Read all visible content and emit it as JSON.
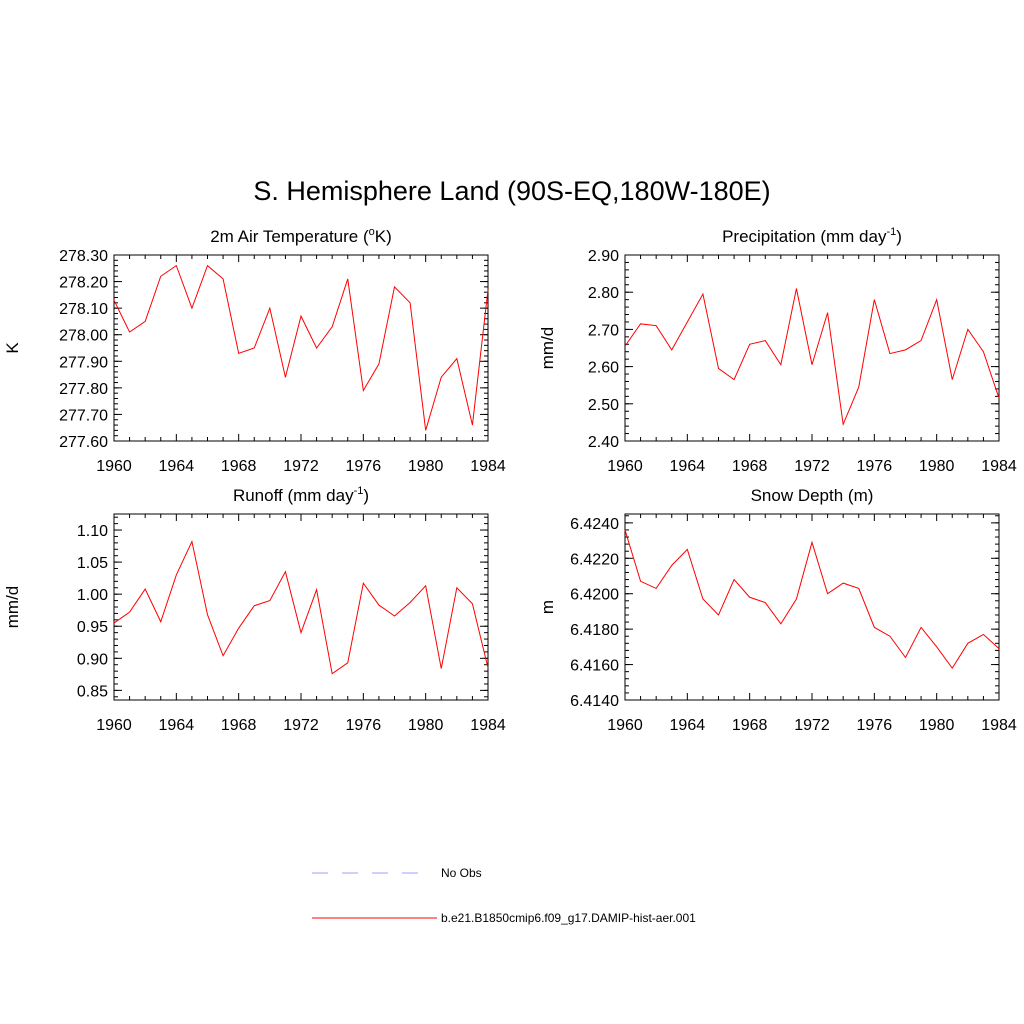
{
  "title": "S. Hemisphere Land (90S-EQ,180W-180E)",
  "colors": {
    "model_line": "#ff0000",
    "obs_line": "#a0a0ff",
    "axis": "#000000"
  },
  "legend": {
    "obs_label": "No Obs",
    "model_label": "b.e21.B1850cmip6.f09_g17.DAMIP-hist-aer.001"
  },
  "chart_data": [
    {
      "type": "line",
      "title": "2m Air Temperature (°K)",
      "title_pre": "2m Air Temperature (",
      "title_sup": "o",
      "title_post": "K)",
      "ylabel": "K",
      "xlim": [
        1960,
        1984
      ],
      "ylim": [
        277.6,
        278.3
      ],
      "x_ticks": [
        "1960",
        "1964",
        "1968",
        "1972",
        "1976",
        "1980",
        "1984"
      ],
      "y_ticks": [
        "277.60",
        "277.70",
        "277.80",
        "277.90",
        "278.00",
        "278.10",
        "278.20",
        "278.30"
      ],
      "series": [
        {
          "x": [
            1960,
            1961,
            1962,
            1963,
            1964,
            1965,
            1966,
            1967,
            1968,
            1969,
            1970,
            1971,
            1972,
            1973,
            1974,
            1975,
            1976,
            1977,
            1978,
            1979,
            1980,
            1981,
            1982,
            1983,
            1984
          ],
          "values": [
            278.13,
            278.01,
            278.05,
            278.22,
            278.26,
            278.1,
            278.26,
            278.21,
            277.93,
            277.95,
            278.1,
            277.84,
            278.07,
            277.95,
            278.03,
            278.21,
            277.79,
            277.89,
            278.18,
            278.12,
            277.64,
            277.84,
            277.91,
            277.66,
            278.17
          ]
        }
      ]
    },
    {
      "type": "line",
      "title": "Precipitation (mm day-1)",
      "title_pre": "Precipitation (mm day",
      "title_sup": "-1",
      "title_post": ")",
      "ylabel": "mm/d",
      "xlim": [
        1960,
        1984
      ],
      "ylim": [
        2.4,
        2.9
      ],
      "x_ticks": [
        "1960",
        "1964",
        "1968",
        "1972",
        "1976",
        "1980",
        "1984"
      ],
      "y_ticks": [
        "2.40",
        "2.50",
        "2.60",
        "2.70",
        "2.80",
        "2.90"
      ],
      "series": [
        {
          "x": [
            1960,
            1961,
            1962,
            1963,
            1964,
            1965,
            1966,
            1967,
            1968,
            1969,
            1970,
            1971,
            1972,
            1973,
            1974,
            1975,
            1976,
            1977,
            1978,
            1979,
            1980,
            1981,
            1982,
            1983,
            1984
          ],
          "values": [
            2.655,
            2.715,
            2.71,
            2.645,
            2.72,
            2.795,
            2.595,
            2.565,
            2.66,
            2.67,
            2.605,
            2.81,
            2.605,
            2.745,
            2.445,
            2.545,
            2.78,
            2.635,
            2.645,
            2.67,
            2.78,
            2.565,
            2.7,
            2.64,
            2.515
          ]
        }
      ]
    },
    {
      "type": "line",
      "title": "Runoff (mm day-1)",
      "title_pre": "Runoff (mm day",
      "title_sup": "-1",
      "title_post": ")",
      "ylabel": "mm/d",
      "xlim": [
        1960,
        1984
      ],
      "ylim": [
        0.835,
        1.125
      ],
      "x_ticks": [
        "1960",
        "1964",
        "1968",
        "1972",
        "1976",
        "1980",
        "1984"
      ],
      "y_ticks": [
        "0.85",
        "0.90",
        "0.95",
        "1.00",
        "1.05",
        "1.10"
      ],
      "series": [
        {
          "x": [
            1960,
            1961,
            1962,
            1963,
            1964,
            1965,
            1966,
            1967,
            1968,
            1969,
            1970,
            1971,
            1972,
            1973,
            1974,
            1975,
            1976,
            1977,
            1978,
            1979,
            1980,
            1981,
            1982,
            1983,
            1984
          ],
          "values": [
            0.955,
            0.972,
            1.008,
            0.957,
            1.03,
            1.082,
            0.968,
            0.904,
            0.947,
            0.982,
            0.99,
            1.035,
            0.94,
            1.007,
            0.876,
            0.893,
            1.017,
            0.983,
            0.966,
            0.987,
            1.013,
            0.884,
            1.01,
            0.985,
            0.885
          ]
        }
      ]
    },
    {
      "type": "line",
      "title": "Snow Depth (m)",
      "title_pre": "Snow Depth (m)",
      "title_sup": "",
      "title_post": "",
      "ylabel": "m",
      "xlim": [
        1960,
        1984
      ],
      "ylim": [
        6.414,
        6.4245
      ],
      "x_ticks": [
        "1960",
        "1964",
        "1968",
        "1972",
        "1976",
        "1980",
        "1984"
      ],
      "y_ticks": [
        "6.4140",
        "6.4160",
        "6.4180",
        "6.4200",
        "6.4220",
        "6.4240"
      ],
      "series": [
        {
          "x": [
            1960,
            1961,
            1962,
            1963,
            1964,
            1965,
            1966,
            1967,
            1968,
            1969,
            1970,
            1971,
            1972,
            1973,
            1974,
            1975,
            1976,
            1977,
            1978,
            1979,
            1980,
            1981,
            1982,
            1983,
            1984
          ],
          "values": [
            6.4236,
            6.4207,
            6.4203,
            6.4216,
            6.4225,
            6.4197,
            6.4188,
            6.4208,
            6.4198,
            6.4195,
            6.4183,
            6.4197,
            6.4229,
            6.42,
            6.4206,
            6.4203,
            6.4181,
            6.4176,
            6.4164,
            6.4181,
            6.417,
            6.4158,
            6.4172,
            6.4177,
            6.4169
          ]
        }
      ]
    }
  ]
}
